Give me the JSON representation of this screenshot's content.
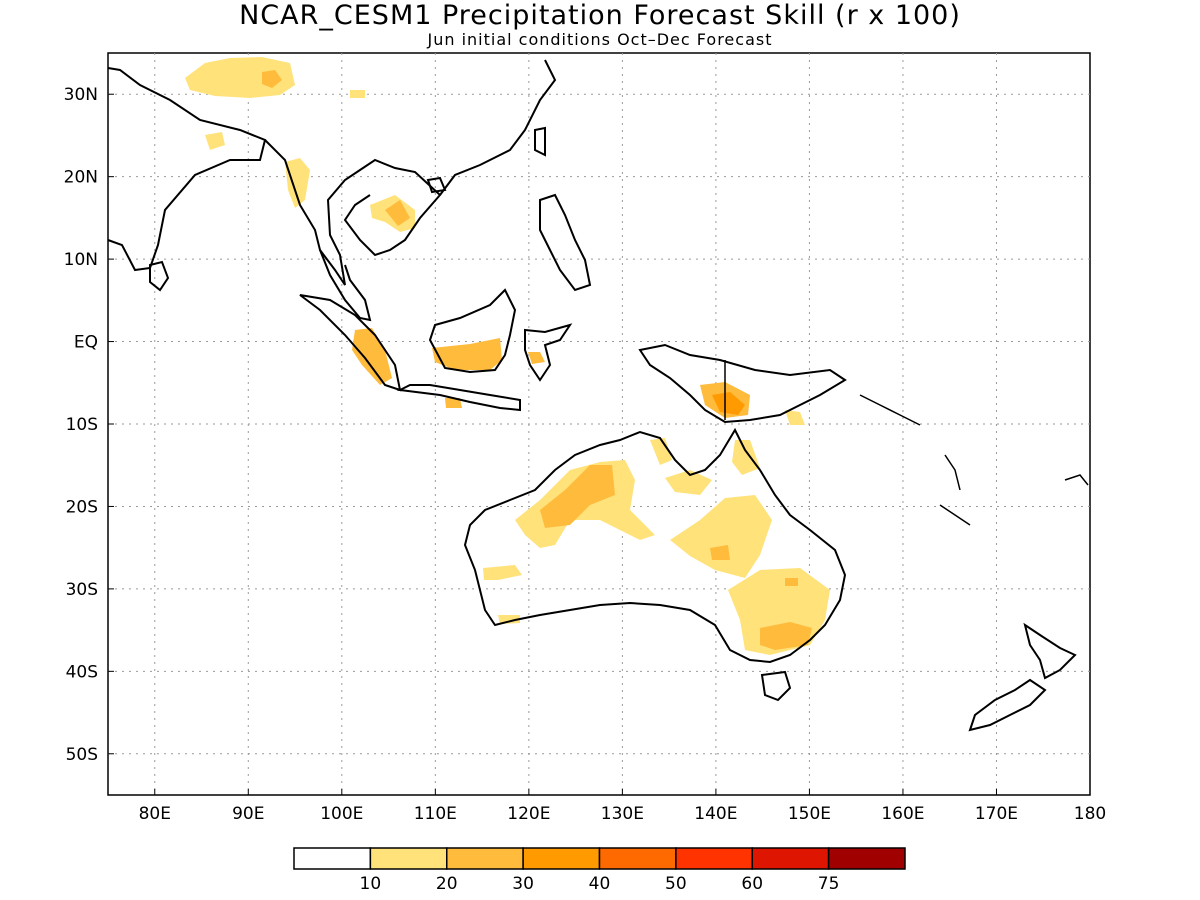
{
  "title": "NCAR_CESM1 Precipitation Forecast Skill (r x 100)",
  "subtitle": "Jun initial conditions  Oct–Dec Forecast",
  "map": {
    "lon_range": [
      75,
      180
    ],
    "lat_range": [
      -55,
      35
    ],
    "lon_ticks": [
      "80E",
      "90E",
      "100E",
      "110E",
      "120E",
      "130E",
      "140E",
      "150E",
      "160E",
      "170E",
      "180"
    ],
    "lat_ticks": [
      "30N",
      "20N",
      "10N",
      "EQ",
      "10S",
      "20S",
      "30S",
      "40S",
      "50S"
    ],
    "gridlines": "dotted"
  },
  "legend": {
    "labels": [
      "10",
      "20",
      "30",
      "40",
      "50",
      "60",
      "75"
    ],
    "colors": [
      "#ffffff",
      "#ffe27a",
      "#ffbb3c",
      "#ff9a00",
      "#ff6a00",
      "#ff3300",
      "#de1500",
      "#a00000"
    ]
  },
  "icons": {
    "coastline": "coastline-outline",
    "skill-shading": "shaded-polygon"
  }
}
